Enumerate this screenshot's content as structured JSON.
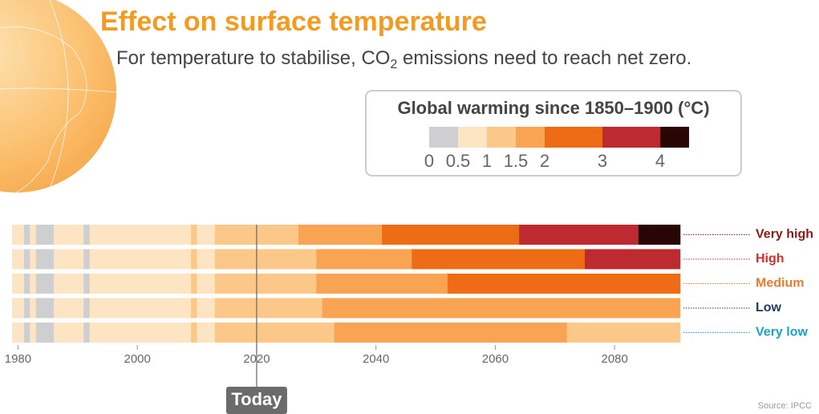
{
  "chart_data": {
    "type": "stripes",
    "title": "Effect on surface temperature",
    "subtitle": {
      "before": "For temperature to stabilise, CO",
      "sub": "2",
      "after": " emissions need to reach net zero."
    },
    "legend_title": "Global warming since 1850–1900 (°C)",
    "color_scale": {
      "bounds": [
        0,
        0.5,
        1,
        1.5,
        2,
        3,
        4
      ],
      "colors": [
        "#cfcfd2",
        "#fde5c3",
        "#fbc88a",
        "#f8a453",
        "#ef6c16",
        "#bd2a30",
        "#2a0505"
      ],
      "lim": [
        0,
        4.5
      ],
      "ticks": [
        0,
        0.5,
        1,
        1.5,
        2,
        3,
        4
      ]
    },
    "xlim": [
      1979,
      2091
    ],
    "xticks": [
      1980,
      2000,
      2020,
      2040,
      2060,
      2080
    ],
    "today": {
      "label": "Today",
      "x": 2020
    },
    "series": [
      {
        "name": "Very high",
        "color": "#8b1a1a",
        "x": [
          1979,
          1981,
          1982,
          1983,
          1986,
          1991,
          1992,
          2009,
          2010,
          2013,
          2027,
          2041,
          2064,
          2084
        ],
        "values": [
          0.8,
          0.4,
          0.8,
          0.4,
          0.8,
          0.4,
          0.8,
          1.1,
          0.8,
          1.2,
          1.7,
          2.5,
          3.5,
          4.2
        ]
      },
      {
        "name": "High",
        "color": "#d62b2b",
        "x": [
          1979,
          1981,
          1982,
          1983,
          1986,
          1991,
          1992,
          2009,
          2010,
          2013,
          2030,
          2046,
          2075
        ],
        "values": [
          0.8,
          0.4,
          0.8,
          0.4,
          0.8,
          0.4,
          0.8,
          1.1,
          0.8,
          1.2,
          1.7,
          2.5,
          3.5
        ]
      },
      {
        "name": "Medium",
        "color": "#ef7a2b",
        "x": [
          1979,
          1981,
          1982,
          1983,
          1986,
          1991,
          1992,
          2009,
          2010,
          2013,
          2030,
          2052
        ],
        "values": [
          0.8,
          0.4,
          0.8,
          0.4,
          0.8,
          0.4,
          0.8,
          1.1,
          0.8,
          1.2,
          1.7,
          2.5
        ]
      },
      {
        "name": "Low",
        "color": "#1f3a5f",
        "x": [
          1979,
          1981,
          1982,
          1983,
          1986,
          1991,
          1992,
          2009,
          2010,
          2013,
          2031
        ],
        "values": [
          0.8,
          0.4,
          0.8,
          0.4,
          0.8,
          0.4,
          0.8,
          1.1,
          0.8,
          1.2,
          1.7
        ]
      },
      {
        "name": "Very low",
        "color": "#1aa3c8",
        "x": [
          1979,
          1981,
          1982,
          1983,
          1986,
          1991,
          1992,
          2009,
          2010,
          2013,
          2033,
          2072
        ],
        "values": [
          0.8,
          0.4,
          0.8,
          0.4,
          0.8,
          0.4,
          0.8,
          1.1,
          0.8,
          1.2,
          1.7,
          1.2
        ]
      }
    ],
    "source": "Source: IPCC"
  }
}
